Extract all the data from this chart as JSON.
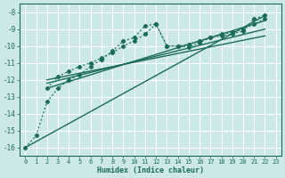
{
  "xlabel": "Humidex (Indice chaleur)",
  "background_color": "#cce8e8",
  "grid_color": "#b0d4d4",
  "line_color": "#1a6b5a",
  "xlim": [
    -0.5,
    23.5
  ],
  "ylim": [
    -16.5,
    -7.5
  ],
  "yticks": [
    -16,
    -15,
    -14,
    -13,
    -12,
    -11,
    -10,
    -9,
    -8
  ],
  "xticks": [
    0,
    1,
    2,
    3,
    4,
    5,
    6,
    7,
    8,
    9,
    10,
    11,
    12,
    13,
    14,
    15,
    16,
    17,
    18,
    19,
    20,
    21,
    22,
    23
  ],
  "line1_x": [
    0,
    1,
    2,
    3,
    4,
    5,
    6,
    7,
    8,
    9,
    10,
    11,
    12,
    13,
    14,
    15,
    16,
    17,
    18,
    19,
    20,
    21,
    22
  ],
  "line1_y": [
    -16.0,
    -15.3,
    -13.3,
    -12.5,
    -12.0,
    -11.7,
    -11.2,
    -10.8,
    -10.3,
    -9.7,
    -9.5,
    -8.8,
    -8.7,
    -10.0,
    -10.0,
    -10.05,
    -9.8,
    -9.5,
    -9.4,
    -9.3,
    -9.1,
    -8.4,
    -8.2
  ],
  "line2_x": [
    2,
    3,
    4,
    5,
    6,
    7,
    8,
    9,
    10,
    11,
    12,
    13,
    14,
    15,
    16,
    17,
    18,
    19,
    20,
    21,
    22
  ],
  "line2_y": [
    -12.5,
    -11.8,
    -11.5,
    -11.2,
    -11.0,
    -10.7,
    -10.4,
    -10.0,
    -9.7,
    -9.3,
    -8.7,
    -10.0,
    -10.0,
    -9.9,
    -9.7,
    -9.5,
    -9.3,
    -9.2,
    -9.0,
    -8.7,
    -8.4
  ],
  "reg_lines": [
    {
      "x": [
        0,
        22
      ],
      "y": [
        -16.0,
        -8.2
      ]
    },
    {
      "x": [
        2,
        22
      ],
      "y": [
        -12.5,
        -8.5
      ]
    },
    {
      "x": [
        2,
        22
      ],
      "y": [
        -12.2,
        -9.0
      ]
    },
    {
      "x": [
        2,
        22
      ],
      "y": [
        -12.0,
        -9.4
      ]
    }
  ]
}
